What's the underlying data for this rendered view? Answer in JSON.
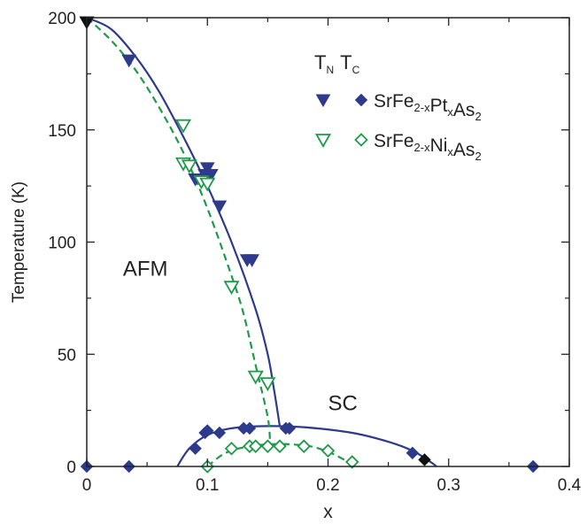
{
  "chart_data": {
    "type": "scatter",
    "title": "",
    "xlabel": "x",
    "ylabel": "Temperature (K)",
    "xlim": [
      0,
      0.4
    ],
    "ylim": [
      0,
      200
    ],
    "x_ticks": [
      0,
      0.1,
      0.2,
      0.3,
      0.4
    ],
    "x_tick_labels": [
      "0",
      "0.1",
      "0.2",
      "0.3",
      "0.4"
    ],
    "y_ticks": [
      0,
      50,
      100,
      150,
      200
    ],
    "y_tick_labels": [
      "0",
      "50",
      "100",
      "150",
      "200"
    ],
    "grid": false,
    "legend": {
      "placement": "top-right",
      "header": {
        "tn": "T",
        "tn_sub": "N",
        "tc": "T",
        "tc_sub": "C"
      },
      "entries": [
        {
          "name_parts": [
            [
              "SrFe",
              false
            ],
            [
              "2-x",
              true
            ],
            [
              "Pt",
              false
            ],
            [
              "x",
              true
            ],
            [
              "As",
              false
            ],
            [
              "2",
              true
            ]
          ]
        },
        {
          "name_parts": [
            [
              "SrFe",
              false
            ],
            [
              "2-x",
              true
            ],
            [
              "Ni",
              false
            ],
            [
              "x",
              true
            ],
            [
              "As",
              false
            ],
            [
              "2",
              true
            ]
          ]
        }
      ]
    },
    "annotations": [
      {
        "text": "AFM",
        "x": 0.03,
        "y": 85
      },
      {
        "text": "SC",
        "x": 0.2,
        "y": 25
      }
    ],
    "colors": {
      "pt": "#2e3a8c",
      "ni": "#1e9a4a",
      "black": "#111111"
    },
    "series": [
      {
        "name": "T_N SrFe2-xPtxAs2",
        "marker": "triangle-down-filled",
        "color": "#2e3a8c",
        "points": [
          [
            0,
            198
          ],
          [
            0.035,
            181
          ],
          [
            0.09,
            128
          ],
          [
            0.098,
            130
          ],
          [
            0.1,
            133
          ],
          [
            0.103,
            130
          ],
          [
            0.11,
            116
          ],
          [
            0.133,
            92
          ],
          [
            0.137,
            92
          ]
        ]
      },
      {
        "name": "T_C SrFe2-xPtxAs2",
        "marker": "diamond-filled",
        "color": "#2e3a8c",
        "points": [
          [
            0,
            0
          ],
          [
            0.035,
            0
          ],
          [
            0.09,
            8
          ],
          [
            0.098,
            15
          ],
          [
            0.1,
            16
          ],
          [
            0.11,
            15
          ],
          [
            0.13,
            17
          ],
          [
            0.135,
            17
          ],
          [
            0.165,
            17
          ],
          [
            0.168,
            17
          ],
          [
            0.27,
            6
          ],
          [
            0.37,
            0
          ]
        ]
      },
      {
        "name": "T_N SrFe2-xNixAs2",
        "marker": "triangle-down-open",
        "color": "#1e9a4a",
        "points": [
          [
            0.08,
            152
          ],
          [
            0.08,
            135
          ],
          [
            0.085,
            134
          ],
          [
            0.095,
            127
          ],
          [
            0.1,
            126
          ],
          [
            0.12,
            80
          ],
          [
            0.14,
            40
          ],
          [
            0.15,
            37
          ]
        ]
      },
      {
        "name": "T_C SrFe2-xNixAs2",
        "marker": "diamond-open",
        "color": "#1e9a4a",
        "points": [
          [
            0.1,
            0
          ],
          [
            0.12,
            8
          ],
          [
            0.135,
            9
          ],
          [
            0.14,
            9
          ],
          [
            0.15,
            9
          ],
          [
            0.16,
            9
          ],
          [
            0.18,
            9
          ],
          [
            0.2,
            7
          ],
          [
            0.22,
            2
          ]
        ]
      },
      {
        "name": "x=0 parent",
        "marker": "triangle-down-filled",
        "color": "#111111",
        "points": [
          [
            0,
            198
          ]
        ]
      },
      {
        "name": "x=0.28",
        "marker": "diamond-filled",
        "color": "#111111",
        "points": [
          [
            0.28,
            3
          ]
        ]
      }
    ],
    "curves": [
      {
        "name": "Pt T_N fit",
        "style": "solid",
        "color": "#2e3a8c",
        "points": [
          [
            0,
            200
          ],
          [
            0.02,
            195
          ],
          [
            0.04,
            183
          ],
          [
            0.06,
            167
          ],
          [
            0.08,
            147
          ],
          [
            0.1,
            125
          ],
          [
            0.12,
            100
          ],
          [
            0.14,
            70
          ],
          [
            0.15,
            50
          ],
          [
            0.155,
            35
          ],
          [
            0.16,
            18
          ]
        ]
      },
      {
        "name": "Pt T_C dome",
        "style": "solid",
        "color": "#2e3a8c",
        "points": [
          [
            0.075,
            0
          ],
          [
            0.085,
            8
          ],
          [
            0.1,
            14
          ],
          [
            0.12,
            17
          ],
          [
            0.15,
            18
          ],
          [
            0.18,
            17.5
          ],
          [
            0.22,
            15
          ],
          [
            0.25,
            11
          ],
          [
            0.27,
            7
          ],
          [
            0.285,
            2
          ],
          [
            0.29,
            0
          ]
        ]
      },
      {
        "name": "Ni T_N fit",
        "style": "dashed",
        "color": "#1e9a4a",
        "points": [
          [
            0,
            200
          ],
          [
            0.02,
            190
          ],
          [
            0.04,
            177
          ],
          [
            0.06,
            160
          ],
          [
            0.08,
            140
          ],
          [
            0.1,
            115
          ],
          [
            0.12,
            85
          ],
          [
            0.13,
            68
          ],
          [
            0.14,
            45
          ],
          [
            0.15,
            22
          ],
          [
            0.152,
            10
          ]
        ]
      },
      {
        "name": "Ni T_C dome",
        "style": "dashed",
        "color": "#1e9a4a",
        "points": [
          [
            0.1,
            0
          ],
          [
            0.115,
            6
          ],
          [
            0.135,
            9
          ],
          [
            0.16,
            10
          ],
          [
            0.185,
            9
          ],
          [
            0.2,
            6.5
          ],
          [
            0.21,
            4
          ],
          [
            0.22,
            1
          ]
        ]
      }
    ]
  }
}
